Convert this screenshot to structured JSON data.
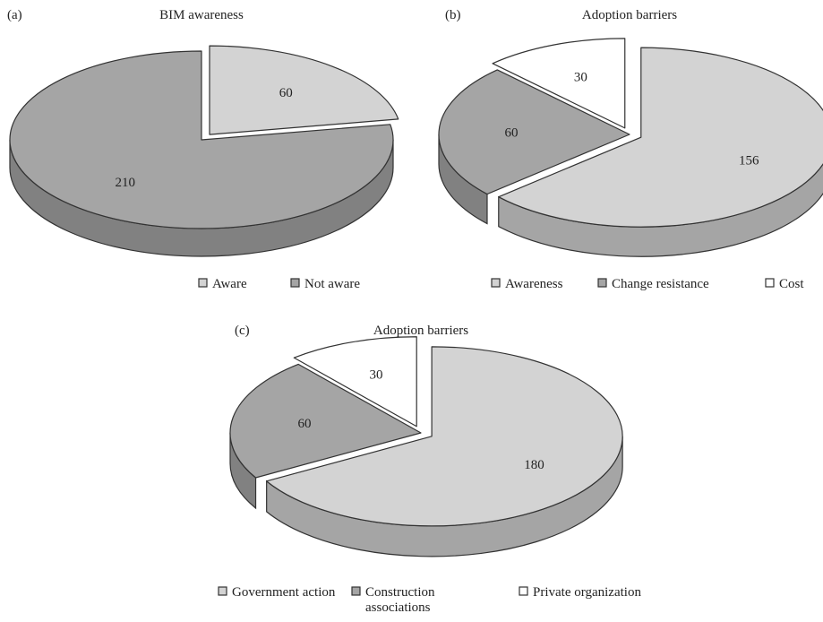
{
  "chart_data": [
    {
      "type": "pie",
      "panel": "(a)",
      "title": "BIM awareness",
      "categories": [
        "Aware",
        "Not aware"
      ],
      "values": [
        60,
        210
      ],
      "colors": [
        "#d3d3d3",
        "#a5a5a5"
      ],
      "exploded": [
        true,
        false
      ],
      "legend": "bottom"
    },
    {
      "type": "pie",
      "panel": "(b)",
      "title": "Adoption barriers",
      "categories": [
        "Awareness",
        "Change resistance",
        "Cost"
      ],
      "values": [
        156,
        60,
        30
      ],
      "colors": [
        "#d3d3d3",
        "#a5a5a5",
        "#ffffff"
      ],
      "exploded": [
        true,
        false,
        true
      ],
      "legend": "bottom"
    },
    {
      "type": "pie",
      "panel": "(c)",
      "title": "Adoption barriers",
      "categories": [
        "Government action",
        "Construction associations",
        "Private organization"
      ],
      "legend_labels": [
        [
          "Government action"
        ],
        [
          "Construction",
          "associations"
        ],
        [
          "Private organization"
        ]
      ],
      "values": [
        180,
        60,
        30
      ],
      "colors": [
        "#d3d3d3",
        "#a5a5a5",
        "#ffffff"
      ],
      "exploded": [
        true,
        false,
        true
      ],
      "legend": "bottom"
    }
  ]
}
